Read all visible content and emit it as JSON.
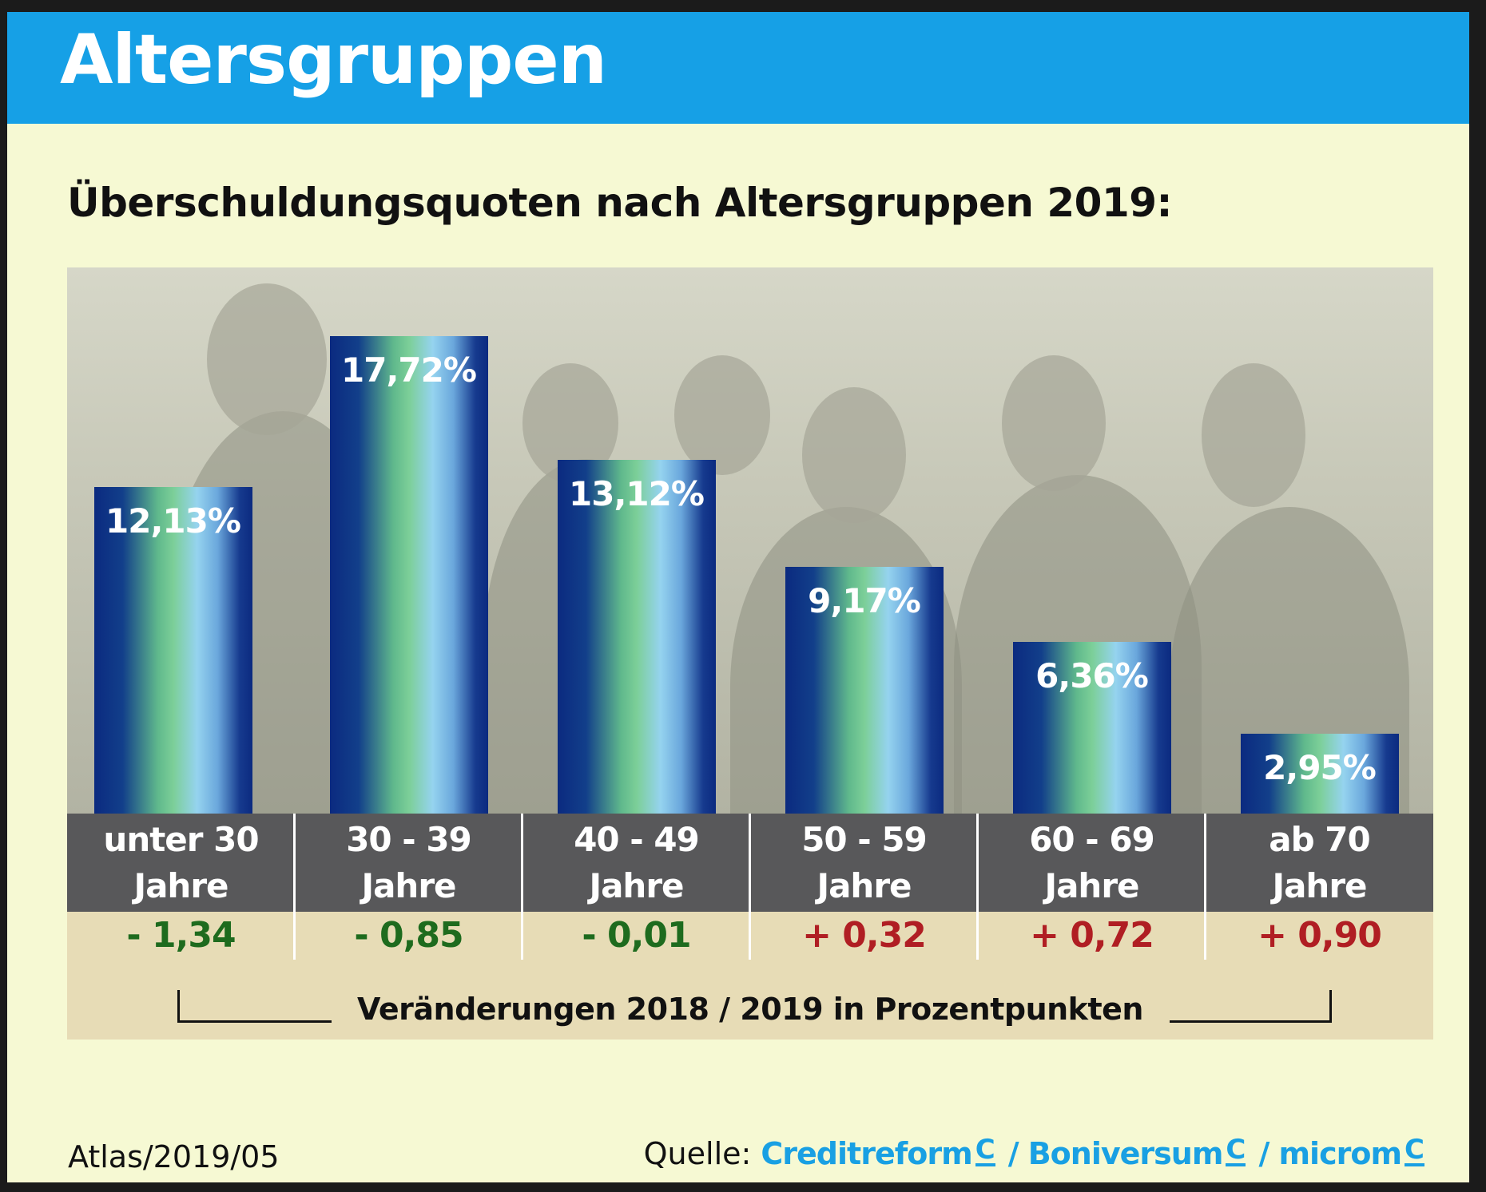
{
  "header": {
    "title": "Altersgruppen"
  },
  "subtitle": "Überschuldungsquoten nach Altersgruppen 2019:",
  "colors": {
    "header": "#16a0e6",
    "background": "#f6f9d3",
    "negative_change": "#1e6b1e",
    "positive_change": "#b01e23",
    "category_band": "#58585a",
    "change_band": "#e7dcb6"
  },
  "chart_data": {
    "type": "bar",
    "title": "Überschuldungsquoten nach Altersgruppen 2019:",
    "categories": [
      "unter 30 Jahre",
      "30 - 39 Jahre",
      "40 - 49 Jahre",
      "50 - 59 Jahre",
      "60 - 69 Jahre",
      "ab 70 Jahre"
    ],
    "category_lines": [
      [
        "unter 30",
        "Jahre"
      ],
      [
        "30 - 39",
        "Jahre"
      ],
      [
        "40 - 49",
        "Jahre"
      ],
      [
        "50 - 59",
        "Jahre"
      ],
      [
        "60 - 69",
        "Jahre"
      ],
      [
        "ab 70",
        "Jahre"
      ]
    ],
    "values": [
      12.13,
      17.72,
      13.12,
      9.17,
      6.36,
      2.95
    ],
    "value_labels": [
      "12,13%",
      "17,72%",
      "13,12%",
      "9,17%",
      "6,36%",
      "2,95%"
    ],
    "changes": [
      -1.34,
      -0.85,
      -0.01,
      0.32,
      0.72,
      0.9
    ],
    "change_labels": [
      "- 1,34",
      "- 0,85",
      "- 0,01",
      "+ 0,32",
      "+ 0,72",
      "+ 0,90"
    ],
    "change_caption": "Veränderungen 2018 / 2019 in Prozentpunkten",
    "ylim": [
      0,
      20
    ],
    "grid": false,
    "xlabel": "",
    "ylabel": ""
  },
  "footer": {
    "atlas": "Atlas/2019/05",
    "source_prefix": "Quelle:",
    "sources": [
      "Creditreform",
      "Boniversum",
      "microm"
    ],
    "separator": "/"
  }
}
